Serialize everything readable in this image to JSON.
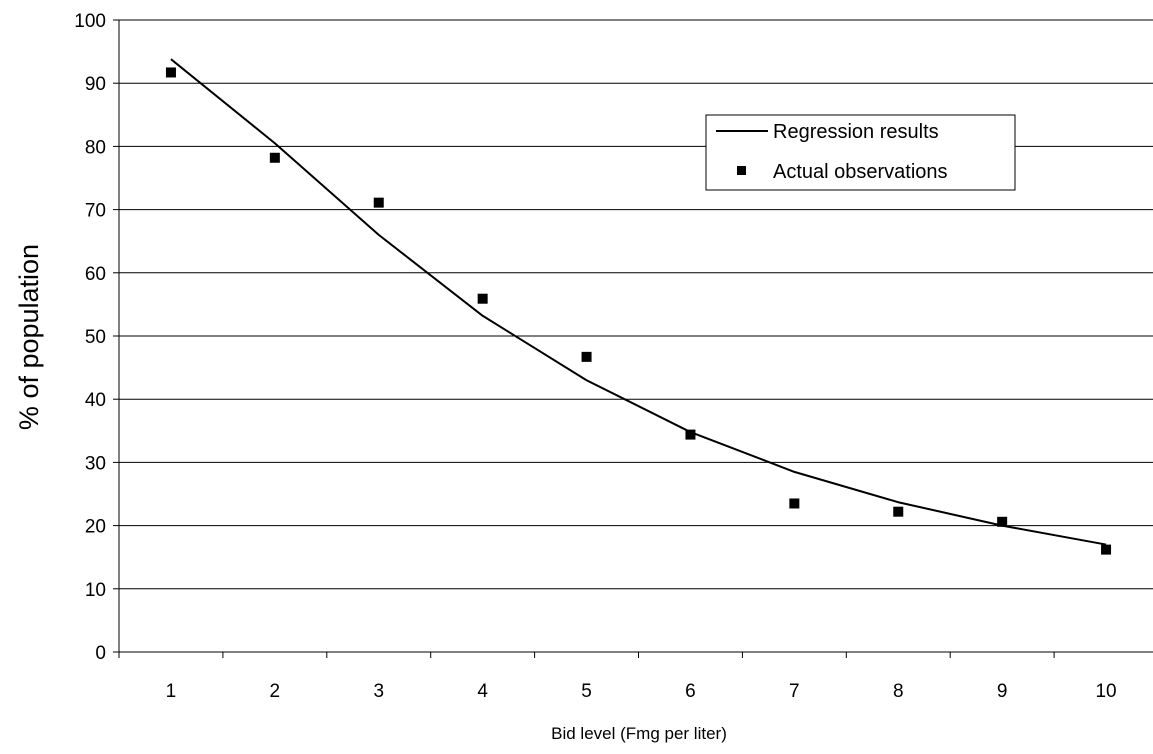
{
  "chart_data": {
    "type": "line",
    "title": "",
    "xlabel": "Bid level (Fmg per liter)",
    "ylabel": "% of population",
    "x": [
      1,
      2,
      3,
      4,
      5,
      6,
      7,
      8,
      9,
      10
    ],
    "xlim": [
      0.5,
      10.5
    ],
    "ylim": [
      0,
      100
    ],
    "y_ticks": [
      0,
      10,
      20,
      30,
      40,
      50,
      60,
      70,
      80,
      90,
      100
    ],
    "grid": "horizontal",
    "legend_position": "top-right",
    "series": [
      {
        "name": "Regression results",
        "kind": "line",
        "color": "#000000",
        "values": [
          93.8,
          80.5,
          66.0,
          53.2,
          43.0,
          34.8,
          28.5,
          23.7,
          20.0,
          17.0
        ]
      },
      {
        "name": "Actual observations",
        "kind": "scatter",
        "marker": "square",
        "color": "#000000",
        "values": [
          91.7,
          78.2,
          71.1,
          55.9,
          46.7,
          34.4,
          23.5,
          22.2,
          20.6,
          16.2
        ]
      }
    ]
  }
}
